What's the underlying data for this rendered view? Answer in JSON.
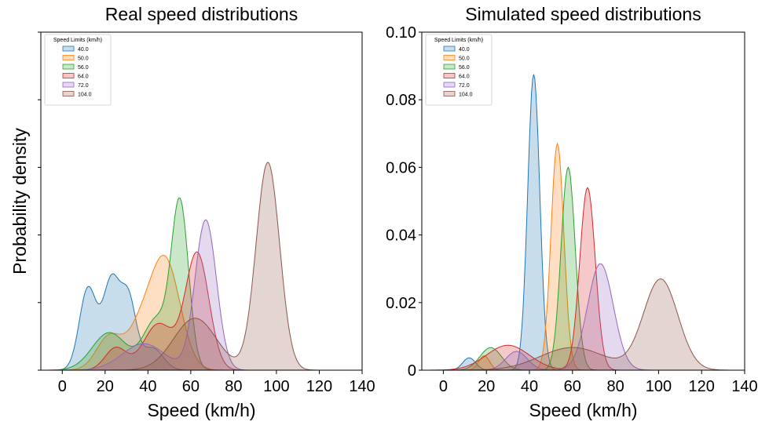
{
  "colors": {
    "40.0": "#1f77b4",
    "50.0": "#ff7f0e",
    "56.0": "#2ca02c",
    "64.0": "#d62728",
    "72.0": "#9467bd",
    "104.0": "#8c564b"
  },
  "chart_data": [
    {
      "type": "area",
      "title": "Real speed distributions",
      "xlabel": "Speed (km/h)",
      "ylabel": "Probability density",
      "xlim": [
        -10,
        140
      ],
      "ylim": [
        0,
        0.1
      ],
      "xticks": [
        0,
        20,
        40,
        60,
        80,
        100,
        120,
        140
      ],
      "yticks": [
        0,
        0.02,
        0.04,
        0.06,
        0.08,
        0.1
      ],
      "ytick_labels_visible": false,
      "legend": {
        "title": "Speed Limits (km/h)",
        "placement": "top-left"
      },
      "series": [
        {
          "name": "40.0",
          "components": [
            {
              "mu": 12,
              "sd": 4,
              "w": 0.55
            },
            {
              "mu": 23,
              "sd": 4,
              "w": 0.6
            },
            {
              "mu": 31,
              "sd": 3.5,
              "w": 0.45
            },
            {
              "mu": 42,
              "sd": 5,
              "w": 0.15
            }
          ]
        },
        {
          "name": "50.0",
          "components": [
            {
              "mu": 22,
              "sd": 6,
              "w": 0.2
            },
            {
              "mu": 48,
              "sd": 7,
              "w": 0.65
            },
            {
              "mu": 36,
              "sd": 6,
              "w": 0.2
            }
          ]
        },
        {
          "name": "56.0",
          "components": [
            {
              "mu": 22,
              "sd": 8,
              "w": 0.15
            },
            {
              "mu": 44,
              "sd": 6,
              "w": 0.2
            },
            {
              "mu": 55,
              "sd": 4,
              "w": 0.65
            }
          ]
        },
        {
          "name": "64.0",
          "components": [
            {
              "mu": 25,
              "sd": 5,
              "w": 0.12
            },
            {
              "mu": 45,
              "sd": 7,
              "w": 0.25
            },
            {
              "mu": 63,
              "sd": 5.5,
              "w": 0.63
            }
          ]
        },
        {
          "name": "72.0",
          "components": [
            {
              "mu": 38,
              "sd": 10,
              "w": 0.15
            },
            {
              "mu": 67,
              "sd": 5,
              "w": 0.85
            }
          ]
        },
        {
          "name": "104.0",
          "components": [
            {
              "mu": 62,
              "sd": 10,
              "w": 0.2
            },
            {
              "mu": 96,
              "sd": 5.5,
              "w": 0.8
            }
          ]
        }
      ],
      "peaks": {
        "40.0": 0.0285,
        "50.0": 0.034,
        "56.0": 0.051,
        "64.0": 0.035,
        "72.0": 0.0445,
        "104.0": 0.0615
      }
    },
    {
      "type": "area",
      "title": "Simulated speed distributions",
      "xlabel": "Speed (km/h)",
      "ylabel": "",
      "xlim": [
        -10,
        140
      ],
      "ylim": [
        0,
        0.1
      ],
      "xticks": [
        0,
        20,
        40,
        60,
        80,
        100,
        120,
        140
      ],
      "yticks": [
        0,
        0.02,
        0.04,
        0.06,
        0.08,
        0.1
      ],
      "ytick_labels": [
        "0",
        "0.02",
        "0.04",
        "0.06",
        "0.08",
        "0.10"
      ],
      "legend": {
        "title": "Speed Limits (km/h)",
        "placement": "top-left"
      },
      "series": [
        {
          "name": "40.0",
          "components": [
            {
              "mu": 12,
              "sd": 3,
              "w": 0.04
            },
            {
              "mu": 42,
              "sd": 2.8,
              "w": 0.96
            }
          ]
        },
        {
          "name": "50.0",
          "components": [
            {
              "mu": 19,
              "sd": 2.5,
              "w": 0.06
            },
            {
              "mu": 53,
              "sd": 3,
              "w": 0.94
            }
          ]
        },
        {
          "name": "56.0",
          "components": [
            {
              "mu": 22,
              "sd": 5,
              "w": 0.1
            },
            {
              "mu": 58,
              "sd": 3.3,
              "w": 0.9
            }
          ]
        },
        {
          "name": "64.0",
          "components": [
            {
              "mu": 30,
              "sd": 10,
              "w": 0.12
            },
            {
              "mu": 67,
              "sd": 3.6,
              "w": 0.88
            }
          ]
        },
        {
          "name": "72.0",
          "components": [
            {
              "mu": 34,
              "sd": 5,
              "w": 0.15
            },
            {
              "mu": 73,
              "sd": 6,
              "w": 0.85
            }
          ]
        },
        {
          "name": "104.0",
          "components": [
            {
              "mu": 60,
              "sd": 15,
              "w": 0.2
            },
            {
              "mu": 101,
              "sd": 8,
              "w": 0.8
            }
          ]
        }
      ],
      "peaks": {
        "40.0": 0.0875,
        "50.0": 0.067,
        "56.0": 0.06,
        "64.0": 0.054,
        "72.0": 0.0315,
        "104.0": 0.027
      }
    }
  ]
}
